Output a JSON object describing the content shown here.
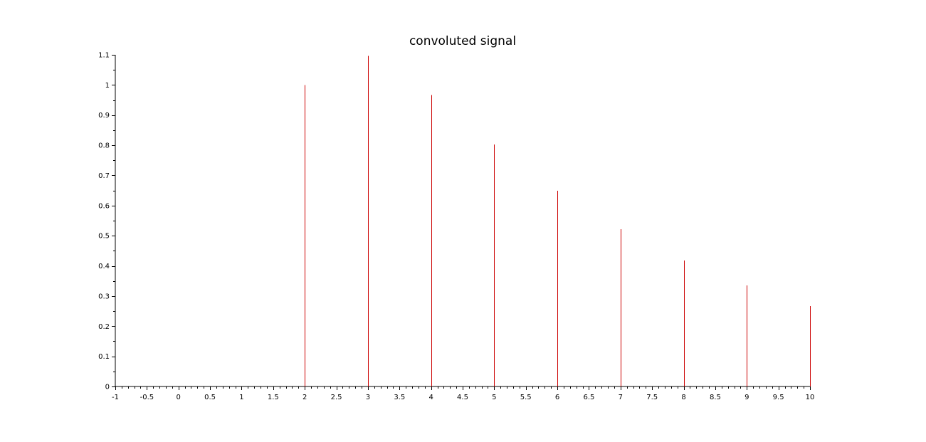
{
  "chart_data": {
    "type": "stem",
    "title": "convoluted signal",
    "xlabel": "",
    "ylabel": "",
    "xlim": [
      -1,
      10
    ],
    "ylim": [
      0,
      1.1
    ],
    "x_ticks": [
      "-1",
      "-0.5",
      "0",
      "0.5",
      "1",
      "1.5",
      "2",
      "2.5",
      "3",
      "3.5",
      "4",
      "4.5",
      "5",
      "5.5",
      "6",
      "6.5",
      "7",
      "7.5",
      "8",
      "8.5",
      "9",
      "9.5",
      "10"
    ],
    "y_ticks": [
      "0",
      "0.1",
      "0.2",
      "0.3",
      "0.4",
      "0.5",
      "0.6",
      "0.7",
      "0.8",
      "0.9",
      "1",
      "1.1"
    ],
    "grid": false,
    "series": [
      {
        "color": "#cc0000",
        "x": [
          0,
          1,
          2,
          3,
          4,
          5,
          6,
          7,
          8,
          9,
          10
        ],
        "y": [
          0,
          0,
          1.0,
          1.097,
          0.967,
          0.802,
          0.649,
          0.522,
          0.418,
          0.335,
          0.267
        ]
      }
    ]
  }
}
